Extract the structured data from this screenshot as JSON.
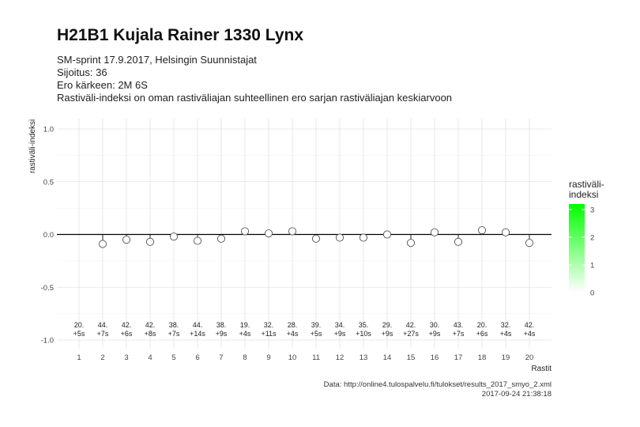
{
  "header": {
    "title": "H21B1 Kujala Rainer 1330 Lynx",
    "subtitle_lines": [
      "SM-sprint 17.9.2017, Helsingin Suunnistajat",
      "Sijoitus: 36",
      "Ero kärkeen: 2M 6S",
      "Rastiväli-indeksi on oman rastiväliajan suhteellinen ero sarjan rastiväliajan keskiarvoon"
    ]
  },
  "caption": {
    "source": "Data: http://online4.tulospalvelu.fi/tulokset/results_2017_smyo_2.xml",
    "timestamp": "2017-09-24 21:38:18"
  },
  "legend": {
    "title_line1": "rastiväli-",
    "title_line2": "indeksi",
    "ticks": [
      "3",
      "2",
      "1",
      "0"
    ],
    "tick_values": [
      3,
      2,
      1,
      0
    ],
    "range": [
      0,
      3.2
    ],
    "color_low": "#ffffff",
    "color_high": "#00ff00"
  },
  "chart_data": {
    "type": "scatter",
    "xlabel": "Rastit",
    "ylabel": "rastiväli-indeksi",
    "ylim": [
      -1.0,
      1.0
    ],
    "yticks": [
      -1.0,
      -0.5,
      0.0,
      0.5,
      1.0
    ],
    "ytick_labels": [
      "-1.0",
      "-0.5",
      "0.0",
      "0.5",
      "1.0"
    ],
    "grid": true,
    "x": [
      1,
      2,
      3,
      4,
      5,
      6,
      7,
      8,
      9,
      10,
      11,
      12,
      13,
      14,
      15,
      16,
      17,
      18,
      19,
      20
    ],
    "x_tick_labels": [
      "1",
      "2",
      "3",
      "4",
      "5",
      "6",
      "7",
      "8",
      "9",
      "10",
      "11",
      "12",
      "13",
      "14",
      "15",
      "16",
      "17",
      "18",
      "19",
      "20"
    ],
    "values": [
      null,
      -0.09,
      -0.05,
      -0.07,
      -0.02,
      -0.06,
      -0.04,
      0.03,
      0.01,
      0.03,
      -0.04,
      -0.03,
      -0.03,
      0.0,
      -0.08,
      0.02,
      -0.07,
      0.04,
      0.02,
      -0.08
    ],
    "annotations_line1": [
      "20.",
      "44.",
      "42.",
      "42.",
      "38.",
      "44.",
      "38.",
      "19.",
      "32.",
      "28.",
      "39.",
      "34.",
      "35.",
      "29.",
      "42.",
      "30.",
      "43.",
      "20.",
      "32.",
      "42."
    ],
    "annotations_line2": [
      "+5s",
      "+7s",
      "+6s",
      "+8s",
      "+7s",
      "+14s",
      "+9s",
      "+4s",
      "+11s",
      "+4s",
      "+5s",
      "+9s",
      "+10s",
      "+9s",
      "+27s",
      "+9s",
      "+7s",
      "+6s",
      "+4s",
      "+4s"
    ]
  }
}
